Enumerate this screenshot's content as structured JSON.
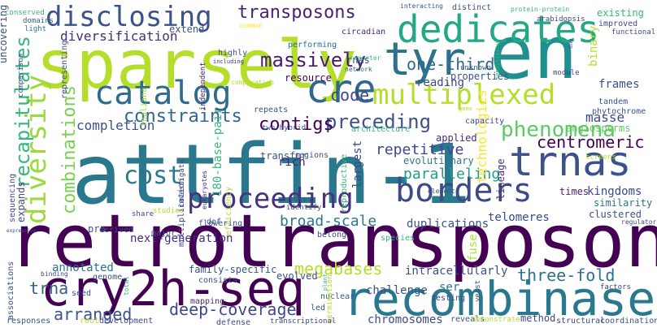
{
  "words": [
    {
      "id": "retrotransposons",
      "text": "retrotransposons",
      "color": "#440154"
    },
    {
      "id": "attfin-1",
      "text": "attfin-1",
      "color": "#2a788e"
    },
    {
      "id": "sparsely",
      "text": "sparsely",
      "color": "#b5de2b"
    },
    {
      "id": "cry2h-seq",
      "text": "cry2h-seq",
      "color": "#440154"
    },
    {
      "id": "recombinase",
      "text": "recombinase",
      "color": "#2a788e"
    },
    {
      "id": "en",
      "text": "en",
      "color": "#218f8d"
    },
    {
      "id": "dedicates",
      "text": "dedicates",
      "color": "#22a884"
    },
    {
      "id": "tyr",
      "text": "tyr",
      "color": "#2c728e"
    },
    {
      "id": "cre",
      "text": "cre",
      "color": "#31688e"
    },
    {
      "id": "catalog",
      "text": "catalog",
      "color": "#2f6b8e"
    },
    {
      "id": "trnas",
      "text": "trnas",
      "color": "#3b528b"
    },
    {
      "id": "proceeding",
      "text": "proceeding",
      "color": "#46327e"
    },
    {
      "id": "borders",
      "text": "borders",
      "color": "#3e4989"
    },
    {
      "id": "multiplexed",
      "text": "multiplexed",
      "color": "#b5de2b"
    },
    {
      "id": "disclosing",
      "text": "disclosing",
      "color": "#3b528b"
    },
    {
      "id": "diversity",
      "text": "diversity",
      "color": "#9bd93c"
    },
    {
      "id": "phenomena",
      "text": "phenomena",
      "color": "#5ec962"
    },
    {
      "id": "cost",
      "text": "cost",
      "color": "#2a788e"
    },
    {
      "id": "transposons",
      "text": "transposons",
      "color": "#482475"
    },
    {
      "id": "massively",
      "text": "massively",
      "color": "#481b6d"
    },
    {
      "id": "one-third",
      "text": "one-third",
      "color": "#31688e"
    },
    {
      "id": "recapitulates",
      "text": "recapitulates",
      "color": "#35b779"
    },
    {
      "id": "combinations",
      "text": "combinations",
      "color": "#7ad151"
    },
    {
      "id": "constraints",
      "text": "constraints",
      "color": "#31688e"
    },
    {
      "id": "preceding",
      "text": "preceding",
      "color": "#3b528b"
    },
    {
      "id": "contigs",
      "text": "contigs",
      "color": "#440154"
    },
    {
      "id": "centromeric",
      "text": "centromeric",
      "color": "#440154"
    },
    {
      "id": "code",
      "text": "code",
      "color": "#3e4989"
    },
    {
      "id": "repetitive",
      "text": "repetitive",
      "color": "#3e4989"
    },
    {
      "id": "paralleling",
      "text": "paralleling",
      "color": "#1f9e89"
    },
    {
      "id": "deep-coverage",
      "text": "deep-coverage",
      "color": "#3e4989"
    },
    {
      "id": "megabases",
      "text": "megabases",
      "color": "#b5de2b"
    },
    {
      "id": "three-fold",
      "text": "three-fold",
      "color": "#2c728e"
    },
    {
      "id": "arranged",
      "text": "arranged",
      "color": "#3b528b"
    },
    {
      "id": "trna",
      "text": "trna",
      "color": "#355f8d"
    },
    {
      "id": "broad-scale",
      "text": "broad-scale",
      "color": "#2a788e"
    },
    {
      "id": "diversification",
      "text": "diversification",
      "color": "#472d7b"
    },
    {
      "id": "reading",
      "text": "reading",
      "color": "#3e4989"
    },
    {
      "id": "frames",
      "text": "frames",
      "color": "#3b528b"
    },
    {
      "id": "binary",
      "text": "binary",
      "color": "#b5de2b"
    },
    {
      "id": "masse",
      "text": "masse",
      "color": "#3e4989"
    },
    {
      "id": "technologies",
      "text": "technologies",
      "color": "#fde725"
    },
    {
      "id": "angiosperms",
      "text": "angiosperms",
      "color": "#5ec962"
    },
    {
      "id": "kingdoms",
      "text": "kingdoms",
      "color": "#3e4989"
    },
    {
      "id": "next-generation",
      "text": "next-generation",
      "color": "#472d7b"
    },
    {
      "id": "telomeres",
      "text": "telomeres",
      "color": "#3e4989"
    },
    {
      "id": "duplications",
      "text": "duplications",
      "color": "#3b528b"
    },
    {
      "id": "intracellularly",
      "text": "intracellularly",
      "color": "#3b528b"
    },
    {
      "id": "ser",
      "text": "ser",
      "color": "#2a788e"
    },
    {
      "id": "fuse",
      "text": "fuse",
      "color": "#b5de2b"
    },
    {
      "id": "annotated",
      "text": "annotated",
      "color": "#2c728e"
    },
    {
      "id": "completion",
      "text": "completion",
      "color": "#3b528b"
    },
    {
      "id": "180-base-pair",
      "text": "180-base-pair",
      "color": "#35b779"
    },
    {
      "id": "largest",
      "text": "largest",
      "color": "#3e4989"
    },
    {
      "id": "rich",
      "text": "rich",
      "color": "#482475"
    },
    {
      "id": "applied",
      "text": "applied",
      "color": "#482878"
    },
    {
      "id": "lineage",
      "text": "lineage",
      "color": "#472d7b"
    },
    {
      "id": "clustered",
      "text": "clustered",
      "color": "#3b528b"
    },
    {
      "id": "similarity",
      "text": "similarity",
      "color": "#2c728e"
    },
    {
      "id": "times",
      "text": "times",
      "color": "#482475"
    },
    {
      "id": "evolutionary",
      "text": "evolutionary",
      "color": "#2a788e"
    },
    {
      "id": "transfer",
      "text": "transfer",
      "color": "#3b528b"
    },
    {
      "id": "regions",
      "text": "regions",
      "color": "#3b528b"
    },
    {
      "id": "architecture",
      "text": "architecture",
      "color": "#35b779"
    },
    {
      "id": "resource",
      "text": "resource",
      "color": "#440154"
    },
    {
      "id": "repeats",
      "text": "repeats",
      "color": "#3b528b"
    },
    {
      "id": "capacity",
      "text": "capacity",
      "color": "#3e4989"
    },
    {
      "id": "properties",
      "text": "properties",
      "color": "#3b528b"
    },
    {
      "id": "rnas",
      "text": "rnas",
      "color": "#3e4989"
    },
    {
      "id": "network",
      "text": "network",
      "color": "#31688e"
    },
    {
      "id": "circadian",
      "text": "circadian",
      "color": "#482878"
    },
    {
      "id": "existing",
      "text": "existing",
      "color": "#35b779"
    },
    {
      "id": "improved",
      "text": "improved",
      "color": "#3e4989"
    },
    {
      "id": "tandem",
      "text": "tandem",
      "color": "#3b528b"
    },
    {
      "id": "phytochrome",
      "text": "phytochrome",
      "color": "#3b528b"
    },
    {
      "id": "screens",
      "text": "screens",
      "color": "#b5de2b"
    },
    {
      "id": "functional",
      "text": "functional",
      "color": "#3e4989"
    },
    {
      "id": "extend",
      "text": "extend",
      "color": "#3b528b"
    },
    {
      "id": "representing",
      "text": "representing",
      "color": "#3e4989"
    },
    {
      "id": "highly",
      "text": "highly",
      "color": "#3b528b"
    },
    {
      "id": "including",
      "text": "including",
      "color": "#472d7b"
    },
    {
      "id": "independent",
      "text": "independent",
      "color": "#482475"
    },
    {
      "id": "performing",
      "text": "performing",
      "color": "#2c728e"
    },
    {
      "id": "thaliana",
      "text": "thaliana",
      "color": "#a0da39"
    },
    {
      "id": "comparison",
      "text": "comparison",
      "color": "#3b528b"
    },
    {
      "id": "light",
      "text": "light",
      "color": "#2a788e"
    },
    {
      "id": "domains",
      "text": "domains",
      "color": "#31688e"
    },
    {
      "id": "conserved",
      "text": "conserved",
      "color": "#35b779"
    },
    {
      "id": "uncovering",
      "text": "uncovering",
      "color": "#3e4989"
    },
    {
      "id": "common",
      "text": "common",
      "color": "#fde725"
    },
    {
      "id": "comparative",
      "text": "comparative",
      "color": "#b5de2b"
    },
    {
      "id": "interacting",
      "text": "interacting",
      "color": "#3b528b"
    },
    {
      "id": "distinct",
      "text": "distinct",
      "color": "#3b528b"
    },
    {
      "id": "protein-protein",
      "text": "protein-protein",
      "color": "#35b779"
    },
    {
      "id": "arabidopsis",
      "text": "arabidopsis",
      "color": "#3e4989"
    },
    {
      "id": "dna",
      "text": "dna",
      "color": "#3b528b"
    },
    {
      "id": "unknown",
      "text": "unknown",
      "color": "#3b528b"
    },
    {
      "id": "reporter",
      "text": "reporter",
      "color": "#35b779"
    },
    {
      "id": "sensitivity",
      "text": "sensitivity",
      "color": "#35b779"
    },
    {
      "id": "module",
      "text": "module",
      "color": "#3e4989"
    },
    {
      "id": "two-hybrid",
      "text": "two-hybrid",
      "color": "#3b528b"
    },
    {
      "id": "studies",
      "text": "studies",
      "color": "#b5de2b"
    },
    {
      "id": "investigate",
      "text": "investigate",
      "color": "#3e4989"
    },
    {
      "id": "eukaryotes",
      "text": "eukaryotes",
      "color": "#482878"
    },
    {
      "id": "multiplication",
      "text": "multiplication",
      "color": "#3e4989"
    },
    {
      "id": "roles",
      "text": "roles",
      "color": "#3b528b"
    },
    {
      "id": "identify",
      "text": "identify",
      "color": "#3b528b"
    },
    {
      "id": "reproductive",
      "text": "reproductive",
      "color": "#35b779"
    },
    {
      "id": "gene",
      "text": "gene",
      "color": "#b5de2b"
    },
    {
      "id": "elements",
      "text": "elements",
      "color": "#3b528b"
    },
    {
      "id": "efficiency",
      "text": "efficiency",
      "color": "#b5de2b"
    },
    {
      "id": "pro",
      "text": "pro",
      "color": "#3b528b"
    },
    {
      "id": "derived",
      "text": "derived",
      "color": "#3e4989"
    },
    {
      "id": "share",
      "text": "share",
      "color": "#3e4989"
    },
    {
      "id": "dof",
      "text": "dof",
      "color": "#3b528b"
    },
    {
      "id": "major",
      "text": "major",
      "color": "#3b528b"
    },
    {
      "id": "flowering",
      "text": "flowering",
      "color": "#3b528b"
    },
    {
      "id": "belong",
      "text": "belong",
      "color": "#3e4989"
    },
    {
      "id": "species",
      "text": "species",
      "color": "#35b779"
    },
    {
      "id": "yeast",
      "text": "yeast",
      "color": "#3b528b"
    },
    {
      "id": "regulators",
      "text": "regulators",
      "color": "#3e4989"
    },
    {
      "id": "expands",
      "text": "expands",
      "color": "#3e4989"
    },
    {
      "id": "sequencing",
      "text": "sequencing",
      "color": "#3e4989"
    },
    {
      "id": "expression",
      "text": "expression",
      "color": "#3e4989"
    },
    {
      "id": "associations",
      "text": "associations",
      "color": "#3e4989"
    },
    {
      "id": "binding",
      "text": "binding",
      "color": "#3e4989"
    },
    {
      "id": "genome",
      "text": "genome",
      "color": "#3e4989"
    },
    {
      "id": "total",
      "text": "total",
      "color": "#35b779"
    },
    {
      "id": "family-specific",
      "text": "family-specific",
      "color": "#3b528b"
    },
    {
      "id": "consists",
      "text": "consists",
      "color": "#3b528b"
    },
    {
      "id": "evolved",
      "text": "evolved",
      "color": "#3e4989"
    },
    {
      "id": "mapping",
      "text": "mapping",
      "color": "#482878"
    },
    {
      "id": "plant",
      "text": "plant",
      "color": "#35b779"
    },
    {
      "id": "nuclear",
      "text": "nuclear",
      "color": "#3b528b"
    },
    {
      "id": "challenge",
      "text": "challenge",
      "color": "#3b528b"
    },
    {
      "id": "testing",
      "text": "testing",
      "color": "#3e4989"
    },
    {
      "id": "led",
      "text": "led",
      "color": "#3b528b"
    },
    {
      "id": "germination",
      "text": "germination",
      "color": "#b5de2b"
    },
    {
      "id": "chromosomes",
      "text": "chromosomes",
      "color": "#3e4989"
    },
    {
      "id": "reveals",
      "text": "reveals",
      "color": "#3b528b"
    },
    {
      "id": "demonstrate",
      "text": "demonstrate",
      "color": "#b5de2b"
    },
    {
      "id": "method",
      "text": "method",
      "color": "#3e4989"
    },
    {
      "id": "factors",
      "text": "factors",
      "color": "#3e4989"
    },
    {
      "id": "structural",
      "text": "structural",
      "color": "#3e4989"
    },
    {
      "id": "coordination",
      "text": "coordination",
      "color": "#3b528b"
    },
    {
      "id": "seed",
      "text": "seed",
      "color": "#3e4989"
    },
    {
      "id": "responses",
      "text": "responses",
      "color": "#3b528b"
    },
    {
      "id": "root",
      "text": "root",
      "color": "#b5de2b"
    },
    {
      "id": "development",
      "text": "development",
      "color": "#3e4989"
    },
    {
      "id": "defense",
      "text": "defense",
      "color": "#3e4989"
    },
    {
      "id": "transcriptional",
      "text": "transcriptional",
      "color": "#3e4989"
    }
  ]
}
